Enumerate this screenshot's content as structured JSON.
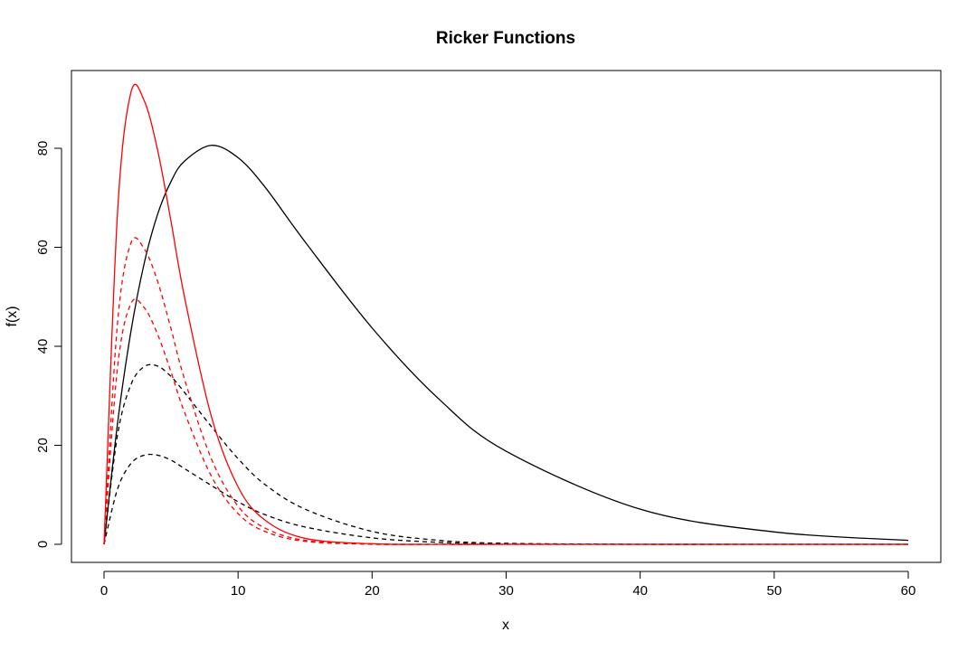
{
  "chart_data": {
    "type": "line",
    "title": "Ricker Functions",
    "xlabel": "x",
    "ylabel": "f(x)",
    "xlim": [
      0,
      60
    ],
    "ylim": [
      0,
      92
    ],
    "xticks": [
      "0",
      "10",
      "20",
      "30",
      "40",
      "50",
      "60"
    ],
    "yticks": [
      "0",
      "20",
      "40",
      "60",
      "80"
    ],
    "grid": false,
    "legend": "none",
    "colors": {
      "black": "#000000",
      "red": "#ff0000"
    },
    "x": [
      0,
      1,
      2,
      3,
      4,
      5,
      6,
      8,
      10,
      12,
      15,
      20,
      25,
      30,
      40,
      50,
      60
    ],
    "series": [
      {
        "color": "#000000",
        "dash": "solid",
        "values": [
          0,
          24.3,
          42.9,
          56.8,
          66.7,
          73.3,
          77.4,
          80.6,
          78.1,
          72.2,
          61.1,
          43.7,
          29.3,
          18.8,
          7.1,
          2.5,
          0.8
        ]
      },
      {
        "color": "#000000",
        "dash": "dashed",
        "values": [
          0,
          22.0,
          32.2,
          35.9,
          36.0,
          33.9,
          30.7,
          23.8,
          17.3,
          12.1,
          7.1,
          2.6,
          0.8,
          0.2,
          0.0,
          0.0,
          0.0
        ]
      },
      {
        "color": "#000000",
        "dash": "dashed",
        "values": [
          0,
          11.1,
          16.3,
          18.0,
          18.0,
          17.0,
          15.3,
          11.9,
          8.6,
          6.0,
          3.5,
          1.3,
          0.4,
          0.1,
          0.0,
          0.0,
          0.0
        ]
      },
      {
        "color": "#ff0000",
        "dash": "solid",
        "values": [
          0,
          66.7,
          91.2,
          89.6,
          79.6,
          65.2,
          50.0,
          25.9,
          11.6,
          4.9,
          1.2,
          0.1,
          0.0,
          0.0,
          0.0,
          0.0,
          0.0
        ]
      },
      {
        "color": "#ff0000",
        "dash": "dashed",
        "values": [
          0,
          44.5,
          60.8,
          59.7,
          53.1,
          43.5,
          33.4,
          17.3,
          7.7,
          3.3,
          0.8,
          0.1,
          0.0,
          0.0,
          0.0,
          0.0,
          0.0
        ]
      },
      {
        "color": "#ff0000",
        "dash": "dashed",
        "values": [
          0,
          35.6,
          48.6,
          47.8,
          42.4,
          34.8,
          26.7,
          13.8,
          6.2,
          2.6,
          0.6,
          0.0,
          0.0,
          0.0,
          0.0,
          0.0,
          0.0
        ]
      }
    ]
  }
}
